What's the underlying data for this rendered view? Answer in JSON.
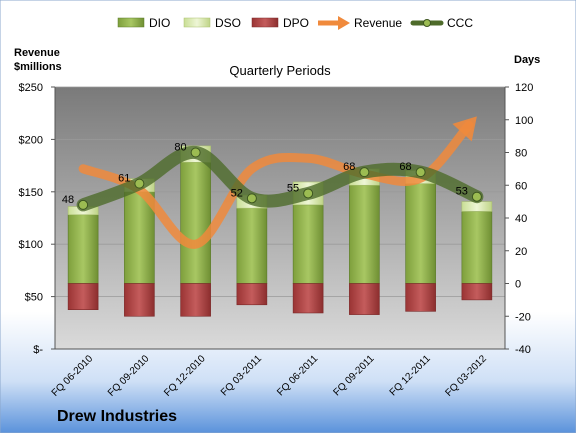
{
  "chart_data": {
    "type": "bar",
    "title": "Quarterly Periods",
    "company": "Drew Industries",
    "left_axis_label": [
      "Revenue",
      "$millions"
    ],
    "right_axis_label": "Days",
    "left_axis": {
      "min": 0,
      "max": 250,
      "ticks": [
        "$-",
        "$50",
        "$100",
        "$150",
        "$200",
        "$250"
      ]
    },
    "right_axis": {
      "min": -40,
      "max": 120,
      "ticks": [
        "-40",
        "-20",
        "0",
        "20",
        "40",
        "60",
        "80",
        "100",
        "120"
      ]
    },
    "categories": [
      "FQ 06-2010",
      "FQ 09-2010",
      "FQ 12-2010",
      "FQ 03-2011",
      "FQ 06-2011",
      "FQ 09-2011",
      "FQ 12-2011",
      "FQ 03-2012"
    ],
    "series": [
      {
        "name": "DIO",
        "kind": "stacked-bar",
        "axis": "right",
        "color": "#8FB04A",
        "values": [
          42,
          56,
          74,
          46,
          48,
          60,
          61,
          44
        ]
      },
      {
        "name": "DSO",
        "kind": "stacked-bar",
        "axis": "right",
        "color": "#DDEDB6",
        "values": [
          5,
          8,
          10,
          8,
          14,
          10,
          8,
          6
        ]
      },
      {
        "name": "DPO",
        "kind": "negative-bar",
        "axis": "right",
        "color": "#B54A4A",
        "values": [
          -16,
          -20,
          -20,
          -13,
          -18,
          -19,
          -17,
          -10
        ]
      },
      {
        "name": "Revenue",
        "kind": "line",
        "axis": "left",
        "color": "#F08A3C",
        "values": [
          172,
          152,
          100,
          172,
          182,
          167,
          163,
          222
        ]
      },
      {
        "name": "CCC",
        "kind": "line",
        "axis": "right",
        "color": "#4E6B2A",
        "values": [
          48,
          61,
          80,
          52,
          55,
          68,
          68,
          53
        ]
      }
    ],
    "ccc_labels": [
      "48",
      "61",
      "80",
      "52",
      "55",
      "68",
      "68",
      "53"
    ],
    "legend_position": "top",
    "grid": true
  }
}
